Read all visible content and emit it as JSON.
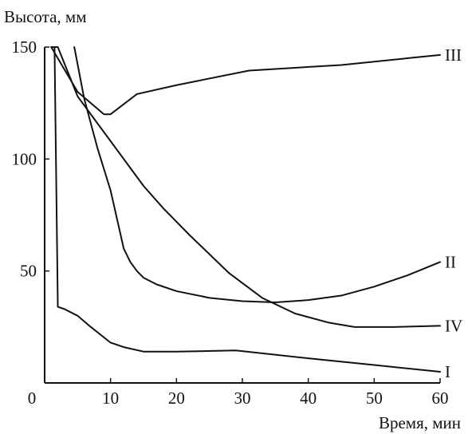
{
  "chart_data": {
    "type": "line",
    "ylabel": "Высота, мм",
    "xlabel": "Время, мин",
    "xlim": [
      0,
      60
    ],
    "ylim": [
      0,
      150
    ],
    "x_ticks": [
      0,
      10,
      20,
      30,
      40,
      50,
      60
    ],
    "y_ticks": [
      50,
      100,
      150
    ],
    "grid": false,
    "legend": "none",
    "series": [
      {
        "name": "I",
        "x": [
          1.5,
          2,
          3,
          5,
          7,
          10,
          12,
          15,
          20,
          29,
          40,
          50,
          60
        ],
        "y": [
          150,
          34,
          33,
          30,
          25,
          18,
          16,
          14,
          14,
          14.5,
          11,
          8,
          5
        ]
      },
      {
        "name": "II",
        "x": [
          4.5,
          6,
          8,
          10,
          11,
          12,
          13,
          14,
          15,
          17,
          20,
          25,
          30,
          35,
          40,
          45,
          50,
          55,
          60
        ],
        "y": [
          150,
          127,
          105,
          86,
          73,
          60,
          54,
          50,
          47,
          44,
          41,
          38,
          36.5,
          36,
          37,
          39,
          43,
          48,
          54
        ]
      },
      {
        "name": "III",
        "x": [
          1,
          5,
          9,
          10,
          14,
          20,
          31,
          45,
          60
        ],
        "y": [
          150,
          130,
          120,
          120,
          129,
          133,
          139.5,
          142,
          146.5
        ]
      },
      {
        "name": "IV",
        "x": [
          1,
          2,
          5,
          10,
          15,
          18,
          22,
          28,
          33,
          38,
          43,
          47,
          53,
          60
        ],
        "y": [
          150,
          150,
          128,
          108,
          88,
          78,
          66,
          49,
          38,
          31,
          27,
          25,
          25,
          25.5
        ]
      }
    ]
  }
}
